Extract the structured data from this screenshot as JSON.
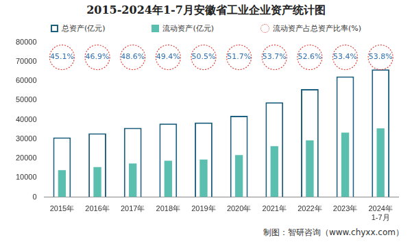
{
  "chart_data": {
    "type": "bar",
    "title": "2015-2024年1-7月安徽省工业企业资产统计图",
    "source": "制图：智研咨询（www.chyxx.com）",
    "categories": [
      "2015年",
      "2016年",
      "2017年",
      "2018年",
      "2019年",
      "2020年",
      "2021年",
      "2022年",
      "2023年",
      "2024年\n1-7月"
    ],
    "series": [
      {
        "name": "总资产(亿元)",
        "type": "bar",
        "color": "#1d5f7e",
        "values": [
          30800,
          33000,
          35800,
          38000,
          38500,
          42000,
          49000,
          55800,
          62300,
          66000
        ]
      },
      {
        "name": "流动资产(亿元)",
        "type": "bar",
        "color": "#5bbfb0",
        "values": [
          13900,
          15500,
          17400,
          18800,
          19400,
          21700,
          26300,
          29300,
          33300,
          35500
        ]
      },
      {
        "name": "流动资产占总资产比率(%)",
        "type": "scatter",
        "marker": "circle",
        "line_style": "dotted",
        "color": "#e0403a",
        "data_labels": true,
        "values": [
          45.1,
          46.9,
          48.6,
          49.4,
          50.5,
          51.7,
          53.7,
          52.6,
          53.4,
          53.8
        ],
        "value_labels": [
          "45.1%",
          "46.9%",
          "48.6%",
          "49.4%",
          "50.5%",
          "51.7%",
          "53.7%",
          "52.6%",
          "53.4%",
          "53.8%"
        ]
      }
    ],
    "ylim": [
      0,
      80000
    ],
    "yticks": [
      0,
      10000,
      20000,
      30000,
      40000,
      50000,
      60000,
      70000,
      80000
    ],
    "grid": false,
    "legend": "top"
  }
}
